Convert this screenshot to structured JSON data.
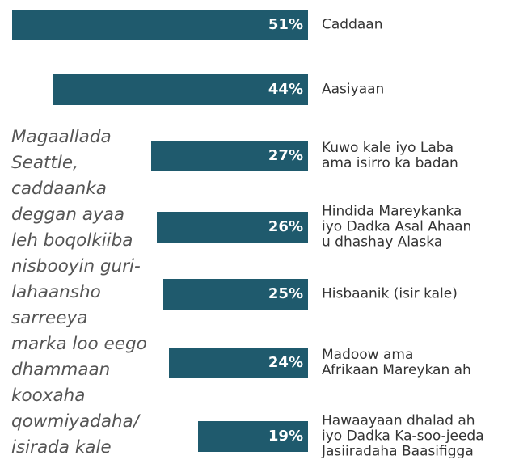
{
  "chart_data": {
    "type": "bar",
    "orientation": "horizontal",
    "color": "#1f5a6d",
    "categories": [
      "Caddaan",
      "Aasiyaan",
      "Kuwo kale iyo Laba\nama isirro ka badan",
      "Hindida Mareykanka\niyo Dadka Asal Ahaan\nu dhashay Alaska",
      "Hisbaanik (isir kale)",
      "Madoow ama\nAfrikaan Mareykan ah",
      "Hawaayaan dhalad ah\niyo Dadka Ka-soo-jeeda\nJasiiradaha Baasifigga"
    ],
    "values": [
      51,
      44,
      27,
      26,
      25,
      24,
      19
    ],
    "value_labels": [
      "51%",
      "44%",
      "27%",
      "26%",
      "25%",
      "24%",
      "19%"
    ],
    "annotation": "Magaallada\nSeattle,\ncaddaanka\ndeggan ayaa\nleh boqolkiiba\nnisbooyin guri-\nlahaansho\nsarreeya\nmarka loo eego\ndhammaan\nkooxaha\nqowmiyadaha/\nisirada kale"
  }
}
